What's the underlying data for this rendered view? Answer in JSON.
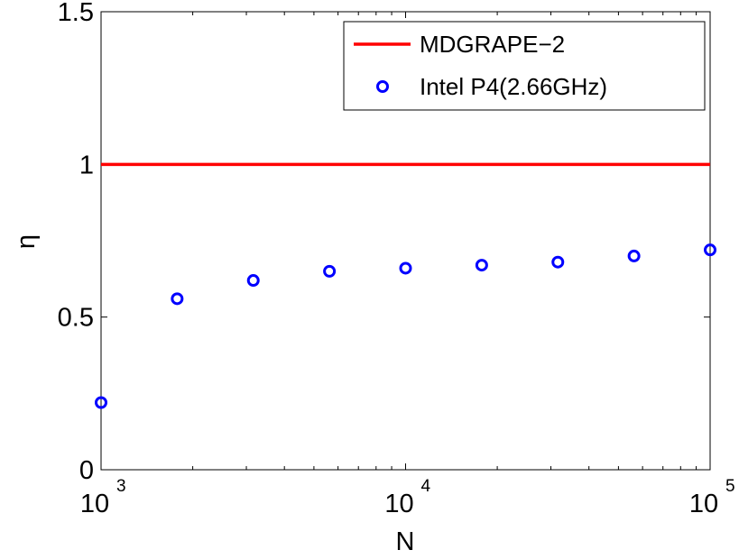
{
  "chart_data": {
    "type": "scatter",
    "xlabel": "N",
    "ylabel": "η",
    "xscale": "log",
    "xlim": [
      1000,
      100000
    ],
    "ylim": [
      0,
      1.5
    ],
    "grid": false,
    "legend_position": "top-right",
    "xticks": [
      {
        "value": 1000,
        "base": "10",
        "exp": "3"
      },
      {
        "value": 10000,
        "base": "10",
        "exp": "4"
      },
      {
        "value": 100000,
        "base": "10",
        "exp": "5"
      }
    ],
    "yticks": [
      {
        "value": 0,
        "label": "0"
      },
      {
        "value": 0.5,
        "label": "0.5"
      },
      {
        "value": 1,
        "label": "1"
      },
      {
        "value": 1.5,
        "label": "1.5"
      }
    ],
    "series": [
      {
        "name": "MDGRAPE−2",
        "kind": "hline",
        "color": "#ff0000",
        "y": 1.0
      },
      {
        "name": "Intel P4(2.66GHz)",
        "kind": "markers",
        "marker": "circle",
        "color": "#0000ff",
        "x": [
          1000,
          1778,
          3162,
          5623,
          10000,
          17783,
          31623,
          56234,
          100000
        ],
        "y": [
          0.22,
          0.56,
          0.62,
          0.65,
          0.66,
          0.67,
          0.68,
          0.7,
          0.72
        ]
      }
    ]
  }
}
